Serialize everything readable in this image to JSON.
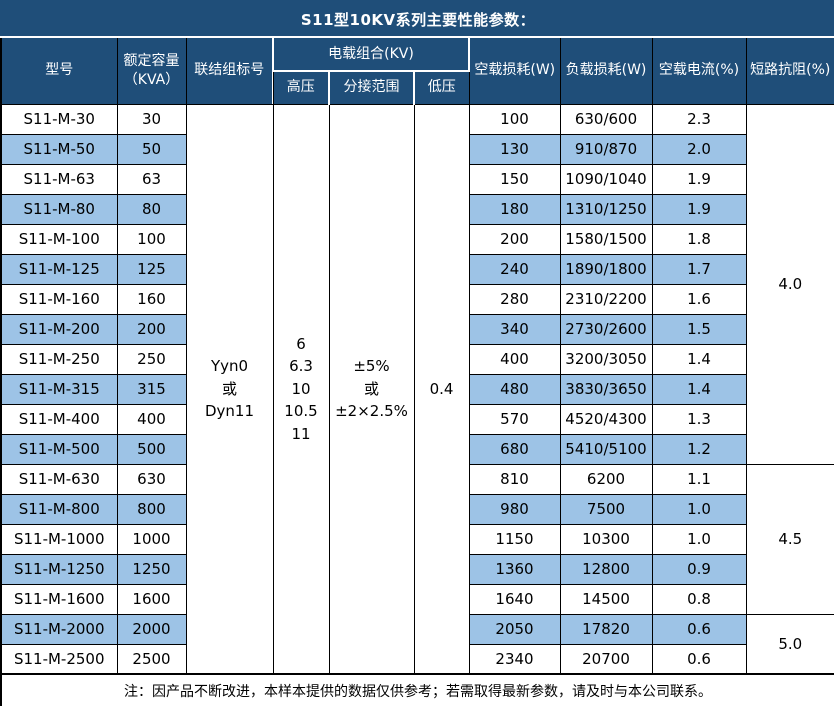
{
  "title": "S11型10KV系列主要性能参数：",
  "header": {
    "model": "型号",
    "capacity_line1": "额定容量",
    "capacity_line2": "（KVA）",
    "connection": "联结组标号",
    "voltage_group": "电载组合(KV)",
    "high_voltage": "高压",
    "tap_range": "分接范围",
    "low_voltage": "低压",
    "no_load_loss": "空载损耗(W)",
    "load_loss": "负载损耗(W)",
    "no_load_current": "空载电流(%)",
    "impedance": "短路抗阻(%)"
  },
  "merged": {
    "connection": "Yyn0\n或\nDyn11",
    "high_voltage": "6\n6.3\n10\n10.5\n11",
    "tap_range": "±5%\n或\n±2×2.5%",
    "low_voltage": "0.4"
  },
  "impedance_groups": [
    {
      "value": "4.0",
      "rows": 12
    },
    {
      "value": "4.5",
      "rows": 5
    },
    {
      "value": "5.0",
      "rows": 2
    }
  ],
  "rows": [
    {
      "model": "S11-M-30",
      "capacity": "30",
      "no_load_loss": "100",
      "load_loss": "630/600",
      "no_load_current": "2.3"
    },
    {
      "model": "S11-M-50",
      "capacity": "50",
      "no_load_loss": "130",
      "load_loss": "910/870",
      "no_load_current": "2.0"
    },
    {
      "model": "S11-M-63",
      "capacity": "63",
      "no_load_loss": "150",
      "load_loss": "1090/1040",
      "no_load_current": "1.9"
    },
    {
      "model": "S11-M-80",
      "capacity": "80",
      "no_load_loss": "180",
      "load_loss": "1310/1250",
      "no_load_current": "1.9"
    },
    {
      "model": "S11-M-100",
      "capacity": "100",
      "no_load_loss": "200",
      "load_loss": "1580/1500",
      "no_load_current": "1.8"
    },
    {
      "model": "S11-M-125",
      "capacity": "125",
      "no_load_loss": "240",
      "load_loss": "1890/1800",
      "no_load_current": "1.7"
    },
    {
      "model": "S11-M-160",
      "capacity": "160",
      "no_load_loss": "280",
      "load_loss": "2310/2200",
      "no_load_current": "1.6"
    },
    {
      "model": "S11-M-200",
      "capacity": "200",
      "no_load_loss": "340",
      "load_loss": "2730/2600",
      "no_load_current": "1.5"
    },
    {
      "model": "S11-M-250",
      "capacity": "250",
      "no_load_loss": "400",
      "load_loss": "3200/3050",
      "no_load_current": "1.4"
    },
    {
      "model": "S11-M-315",
      "capacity": "315",
      "no_load_loss": "480",
      "load_loss": "3830/3650",
      "no_load_current": "1.4"
    },
    {
      "model": "S11-M-400",
      "capacity": "400",
      "no_load_loss": "570",
      "load_loss": "4520/4300",
      "no_load_current": "1.3"
    },
    {
      "model": "S11-M-500",
      "capacity": "500",
      "no_load_loss": "680",
      "load_loss": "5410/5100",
      "no_load_current": "1.2"
    },
    {
      "model": "S11-M-630",
      "capacity": "630",
      "no_load_loss": "810",
      "load_loss": "6200",
      "no_load_current": "1.1"
    },
    {
      "model": "S11-M-800",
      "capacity": "800",
      "no_load_loss": "980",
      "load_loss": "7500",
      "no_load_current": "1.0"
    },
    {
      "model": "S11-M-1000",
      "capacity": "1000",
      "no_load_loss": "1150",
      "load_loss": "10300",
      "no_load_current": "1.0"
    },
    {
      "model": "S11-M-1250",
      "capacity": "1250",
      "no_load_loss": "1360",
      "load_loss": "12800",
      "no_load_current": "0.9"
    },
    {
      "model": "S11-M-1600",
      "capacity": "1600",
      "no_load_loss": "1640",
      "load_loss": "14500",
      "no_load_current": "0.8"
    },
    {
      "model": "S11-M-2000",
      "capacity": "2000",
      "no_load_loss": "2050",
      "load_loss": "17820",
      "no_load_current": "0.6"
    },
    {
      "model": "S11-M-2500",
      "capacity": "2500",
      "no_load_loss": "2340",
      "load_loss": "20700",
      "no_load_current": "0.6"
    }
  ],
  "note": "注：因产品不断改进，本样本提供的数据仅供参考；若需取得最新参数，请及时与本公司联系。",
  "colors": {
    "header_bg": "#1F4E79",
    "row_stripe": "#9DC3E6",
    "border": "#000000",
    "header_text": "#FFFFFF"
  }
}
